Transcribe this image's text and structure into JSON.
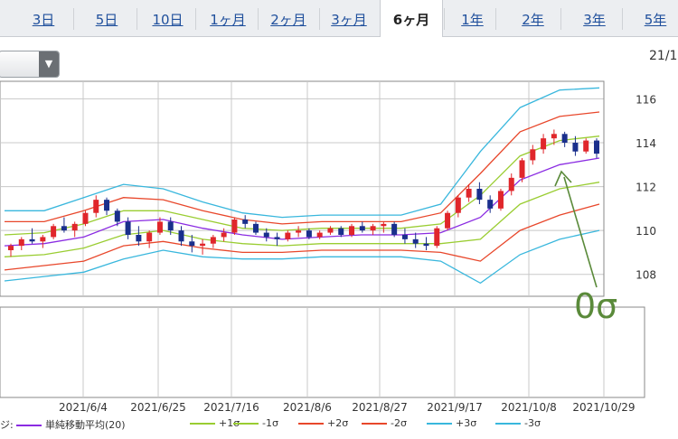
{
  "tabs": [
    {
      "label": "3日",
      "active": false
    },
    {
      "label": "5日",
      "active": false
    },
    {
      "label": "10日",
      "active": false
    },
    {
      "label": "1ヶ月",
      "active": false
    },
    {
      "label": "2ヶ月",
      "active": false
    },
    {
      "label": "3ヶ月",
      "active": false
    },
    {
      "label": "6ヶ月",
      "active": true
    },
    {
      "label": "1年",
      "active": false
    },
    {
      "label": "2年",
      "active": false
    },
    {
      "label": "3年",
      "active": false
    },
    {
      "label": "5年",
      "active": false
    }
  ],
  "date_stamp": "21/1",
  "annotation_label": "0σ",
  "legend": {
    "prefix": "ジ:",
    "items": [
      {
        "label": "単純移動平均(20)",
        "color": "#8a2be2"
      },
      {
        "label": "+1σ",
        "color": "#9acd32"
      },
      {
        "label": "-1σ",
        "color": "#9acd32"
      },
      {
        "label": "+2σ",
        "color": "#e8472b"
      },
      {
        "label": "-2σ",
        "color": "#e8472b"
      },
      {
        "label": "+3σ",
        "color": "#39b7dd"
      },
      {
        "label": "-3σ",
        "color": "#39b7dd"
      }
    ]
  },
  "chart_data": {
    "type": "line",
    "x_tick_labels": [
      "2021/6/4",
      "2021/6/25",
      "2021/7/16",
      "2021/8/6",
      "2021/8/27",
      "2021/9/17",
      "2021/10/8",
      "2021/10/29"
    ],
    "y_tick_labels": [
      "108",
      "110",
      "112",
      "114",
      "116"
    ],
    "ylim": [
      107,
      116.8
    ],
    "grid": true,
    "x": [
      "5/25",
      "6/4",
      "6/14",
      "6/25",
      "7/5",
      "7/16",
      "7/26",
      "8/6",
      "8/16",
      "8/27",
      "9/6",
      "9/17",
      "9/27",
      "10/8",
      "10/18",
      "10/29"
    ],
    "series": [
      {
        "name": "単純移動平均(20)",
        "color": "#8a2be2",
        "values": [
          109.3,
          109.4,
          109.7,
          110.4,
          110.5,
          110.1,
          109.8,
          109.6,
          109.7,
          109.8,
          109.8,
          109.9,
          110.6,
          112.3,
          113.0,
          113.3
        ]
      },
      {
        "name": "+1σ",
        "color": "#9acd32",
        "values": [
          109.8,
          109.9,
          110.3,
          110.9,
          110.9,
          110.5,
          110.1,
          110.0,
          110.1,
          110.1,
          110.1,
          110.3,
          111.6,
          113.4,
          114.1,
          114.3
        ]
      },
      {
        "name": "-1σ",
        "color": "#9acd32",
        "values": [
          108.8,
          108.9,
          109.2,
          109.8,
          110.0,
          109.6,
          109.4,
          109.3,
          109.4,
          109.4,
          109.4,
          109.4,
          109.6,
          111.2,
          111.9,
          112.2
        ]
      },
      {
        "name": "+2σ",
        "color": "#e8472b",
        "values": [
          110.4,
          110.4,
          110.9,
          111.5,
          111.4,
          110.9,
          110.5,
          110.3,
          110.4,
          110.4,
          110.4,
          110.8,
          112.6,
          114.5,
          115.2,
          115.4
        ]
      },
      {
        "name": "-2σ",
        "color": "#e8472b",
        "values": [
          108.2,
          108.4,
          108.6,
          109.3,
          109.5,
          109.2,
          109.0,
          109.0,
          109.1,
          109.1,
          109.1,
          109.0,
          108.6,
          110.0,
          110.7,
          111.2
        ]
      },
      {
        "name": "+3σ",
        "color": "#39b7dd",
        "values": [
          110.9,
          110.9,
          111.5,
          112.1,
          111.9,
          111.3,
          110.8,
          110.6,
          110.7,
          110.7,
          110.7,
          111.2,
          113.6,
          115.6,
          116.4,
          116.5
        ]
      },
      {
        "name": "-3σ",
        "color": "#39b7dd",
        "values": [
          107.7,
          107.9,
          108.1,
          108.7,
          109.1,
          108.8,
          108.7,
          108.7,
          108.8,
          108.8,
          108.8,
          108.6,
          107.6,
          108.9,
          109.6,
          110.0
        ]
      }
    ],
    "candles": [
      {
        "o": 109.1,
        "h": 109.4,
        "l": 108.8,
        "c": 109.3
      },
      {
        "o": 109.3,
        "h": 109.7,
        "l": 109.1,
        "c": 109.6
      },
      {
        "o": 109.6,
        "h": 110.1,
        "l": 109.4,
        "c": 109.5
      },
      {
        "o": 109.5,
        "h": 109.8,
        "l": 109.2,
        "c": 109.7
      },
      {
        "o": 109.7,
        "h": 110.3,
        "l": 109.6,
        "c": 110.2
      },
      {
        "o": 110.2,
        "h": 110.6,
        "l": 109.9,
        "c": 110.0
      },
      {
        "o": 110.0,
        "h": 110.4,
        "l": 109.7,
        "c": 110.3
      },
      {
        "o": 110.3,
        "h": 110.9,
        "l": 110.2,
        "c": 110.8
      },
      {
        "o": 110.8,
        "h": 111.6,
        "l": 110.6,
        "c": 111.4
      },
      {
        "o": 111.4,
        "h": 111.5,
        "l": 110.7,
        "c": 110.9
      },
      {
        "o": 110.9,
        "h": 111.0,
        "l": 110.2,
        "c": 110.4
      },
      {
        "o": 110.4,
        "h": 110.6,
        "l": 109.6,
        "c": 109.8
      },
      {
        "o": 109.8,
        "h": 110.2,
        "l": 109.3,
        "c": 109.5
      },
      {
        "o": 109.5,
        "h": 110.0,
        "l": 109.2,
        "c": 109.9
      },
      {
        "o": 109.9,
        "h": 110.6,
        "l": 109.8,
        "c": 110.4
      },
      {
        "o": 110.4,
        "h": 110.6,
        "l": 109.8,
        "c": 110.0
      },
      {
        "o": 110.0,
        "h": 110.2,
        "l": 109.3,
        "c": 109.5
      },
      {
        "o": 109.5,
        "h": 109.8,
        "l": 109.0,
        "c": 109.3
      },
      {
        "o": 109.3,
        "h": 109.6,
        "l": 108.9,
        "c": 109.4
      },
      {
        "o": 109.4,
        "h": 109.8,
        "l": 109.2,
        "c": 109.7
      },
      {
        "o": 109.7,
        "h": 110.1,
        "l": 109.5,
        "c": 109.9
      },
      {
        "o": 109.9,
        "h": 110.6,
        "l": 109.8,
        "c": 110.5
      },
      {
        "o": 110.5,
        "h": 110.7,
        "l": 110.1,
        "c": 110.3
      },
      {
        "o": 110.3,
        "h": 110.4,
        "l": 109.8,
        "c": 109.9
      },
      {
        "o": 109.9,
        "h": 110.1,
        "l": 109.5,
        "c": 109.7
      },
      {
        "o": 109.7,
        "h": 109.9,
        "l": 109.3,
        "c": 109.6
      },
      {
        "o": 109.6,
        "h": 110.0,
        "l": 109.5,
        "c": 109.9
      },
      {
        "o": 109.9,
        "h": 110.2,
        "l": 109.7,
        "c": 110.0
      },
      {
        "o": 110.0,
        "h": 110.1,
        "l": 109.6,
        "c": 109.7
      },
      {
        "o": 109.7,
        "h": 110.0,
        "l": 109.6,
        "c": 109.9
      },
      {
        "o": 109.9,
        "h": 110.2,
        "l": 109.8,
        "c": 110.1
      },
      {
        "o": 110.1,
        "h": 110.2,
        "l": 109.7,
        "c": 109.8
      },
      {
        "o": 109.8,
        "h": 110.3,
        "l": 109.7,
        "c": 110.2
      },
      {
        "o": 110.2,
        "h": 110.4,
        "l": 109.9,
        "c": 110.0
      },
      {
        "o": 110.0,
        "h": 110.3,
        "l": 109.8,
        "c": 110.2
      },
      {
        "o": 110.2,
        "h": 110.4,
        "l": 109.9,
        "c": 110.3
      },
      {
        "o": 110.3,
        "h": 110.4,
        "l": 109.7,
        "c": 109.8
      },
      {
        "o": 109.8,
        "h": 110.1,
        "l": 109.4,
        "c": 109.6
      },
      {
        "o": 109.6,
        "h": 109.9,
        "l": 109.2,
        "c": 109.4
      },
      {
        "o": 109.4,
        "h": 109.7,
        "l": 109.1,
        "c": 109.3
      },
      {
        "o": 109.3,
        "h": 110.2,
        "l": 109.2,
        "c": 110.1
      },
      {
        "o": 110.1,
        "h": 110.9,
        "l": 110.0,
        "c": 110.8
      },
      {
        "o": 110.8,
        "h": 111.6,
        "l": 110.6,
        "c": 111.5
      },
      {
        "o": 111.5,
        "h": 112.1,
        "l": 111.3,
        "c": 111.9
      },
      {
        "o": 111.9,
        "h": 112.2,
        "l": 111.2,
        "c": 111.4
      },
      {
        "o": 111.4,
        "h": 111.6,
        "l": 110.8,
        "c": 111.0
      },
      {
        "o": 111.0,
        "h": 111.9,
        "l": 110.9,
        "c": 111.8
      },
      {
        "o": 111.8,
        "h": 112.6,
        "l": 111.6,
        "c": 112.4
      },
      {
        "o": 112.4,
        "h": 113.3,
        "l": 112.2,
        "c": 113.2
      },
      {
        "o": 113.2,
        "h": 113.9,
        "l": 113.0,
        "c": 113.7
      },
      {
        "o": 113.7,
        "h": 114.4,
        "l": 113.5,
        "c": 114.2
      },
      {
        "o": 114.2,
        "h": 114.6,
        "l": 113.9,
        "c": 114.4
      },
      {
        "o": 114.4,
        "h": 114.5,
        "l": 113.8,
        "c": 114.0
      },
      {
        "o": 114.0,
        "h": 114.3,
        "l": 113.4,
        "c": 113.6
      },
      {
        "o": 113.6,
        "h": 114.2,
        "l": 113.5,
        "c": 114.1
      },
      {
        "o": 114.1,
        "h": 114.2,
        "l": 113.3,
        "c": 113.5
      }
    ]
  }
}
